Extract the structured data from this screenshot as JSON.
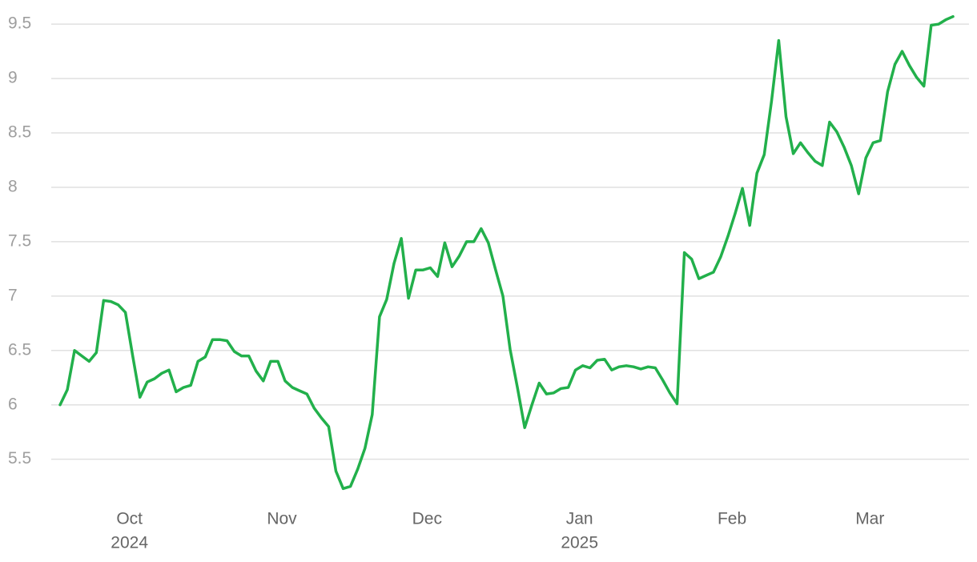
{
  "chart_data": {
    "type": "line",
    "categories": [
      null,
      null,
      null,
      null,
      null,
      null,
      null,
      null,
      null,
      null,
      "Oct",
      null,
      null,
      null,
      null,
      null,
      null,
      null,
      null,
      null,
      null,
      null,
      null,
      null,
      null,
      null,
      null,
      null,
      null,
      null,
      null,
      "Nov",
      null,
      null,
      null,
      null,
      null,
      null,
      null,
      null,
      null,
      null,
      null,
      null,
      null,
      null,
      null,
      null,
      null,
      null,
      null,
      "Dec",
      null,
      null,
      null,
      null,
      null,
      null,
      null,
      null,
      null,
      null,
      null,
      null,
      null,
      null,
      null,
      null,
      null,
      null,
      null,
      null,
      "Jan",
      null,
      null,
      null,
      null,
      null,
      null,
      null,
      null,
      null,
      null,
      null,
      null,
      null,
      null,
      null,
      null,
      null,
      null,
      null,
      null,
      "Feb",
      null,
      null,
      null,
      null,
      null,
      null,
      null,
      null,
      null,
      null,
      null,
      null,
      null,
      null,
      null,
      null,
      null,
      null,
      "Mar",
      null,
      null,
      null,
      null,
      null,
      null,
      null,
      null,
      null,
      null,
      null
    ],
    "x_sublabels": [
      null,
      null,
      null,
      null,
      null,
      null,
      null,
      null,
      null,
      null,
      "2024",
      null,
      null,
      null,
      null,
      null,
      null,
      null,
      null,
      null,
      null,
      null,
      null,
      null,
      null,
      null,
      null,
      null,
      null,
      null,
      null,
      null,
      null,
      null,
      null,
      null,
      null,
      null,
      null,
      null,
      null,
      null,
      null,
      null,
      null,
      null,
      null,
      null,
      null,
      null,
      null,
      null,
      null,
      null,
      null,
      null,
      null,
      null,
      null,
      null,
      null,
      null,
      null,
      null,
      null,
      null,
      null,
      null,
      null,
      null,
      null,
      null,
      "2025",
      null,
      null,
      null,
      null,
      null,
      null,
      null,
      null,
      null,
      null,
      null,
      null,
      null,
      null,
      null,
      null,
      null,
      null,
      null,
      null,
      null,
      null,
      null,
      null,
      null,
      null,
      null,
      null,
      null,
      null,
      null,
      null,
      null,
      null,
      null,
      null,
      null,
      null,
      null,
      null,
      null,
      null,
      null,
      null,
      null,
      null,
      null,
      null,
      null,
      null,
      null
    ],
    "values": [
      6.0,
      6.14,
      6.5,
      6.45,
      6.4,
      6.48,
      6.96,
      6.95,
      6.92,
      6.85,
      6.45,
      6.07,
      6.21,
      6.24,
      6.29,
      6.32,
      6.12,
      6.16,
      6.18,
      6.4,
      6.44,
      6.6,
      6.6,
      6.59,
      6.49,
      6.45,
      6.45,
      6.31,
      6.22,
      6.4,
      6.4,
      6.22,
      6.16,
      6.13,
      6.1,
      5.97,
      5.88,
      5.8,
      5.39,
      5.23,
      5.25,
      5.41,
      5.6,
      5.91,
      6.81,
      6.97,
      7.3,
      7.53,
      6.98,
      7.24,
      7.24,
      7.26,
      7.18,
      7.49,
      7.27,
      7.37,
      7.5,
      7.5,
      7.62,
      7.49,
      7.24,
      7.0,
      6.51,
      6.16,
      5.79,
      6.0,
      6.2,
      6.1,
      6.11,
      6.15,
      6.16,
      6.32,
      6.36,
      6.34,
      6.41,
      6.42,
      6.32,
      6.35,
      6.36,
      6.35,
      6.33,
      6.35,
      6.34,
      6.23,
      6.11,
      6.01,
      7.4,
      7.34,
      7.16,
      7.19,
      7.22,
      7.36,
      7.55,
      7.76,
      7.99,
      7.65,
      8.13,
      8.3,
      8.79,
      9.35,
      8.65,
      8.31,
      8.41,
      8.32,
      8.24,
      8.2,
      8.6,
      8.51,
      8.37,
      8.2,
      7.94,
      8.27,
      8.41,
      8.43,
      8.88,
      9.13,
      9.25,
      9.12,
      9.01,
      8.93,
      9.49,
      9.5,
      9.54,
      9.57
    ],
    "color": "#22b04b",
    "ylim": [
      5.1,
      9.7
    ],
    "yticks": [
      5.5,
      6,
      6.5,
      7,
      7.5,
      8,
      8.5,
      9,
      9.5
    ],
    "grid": true
  }
}
